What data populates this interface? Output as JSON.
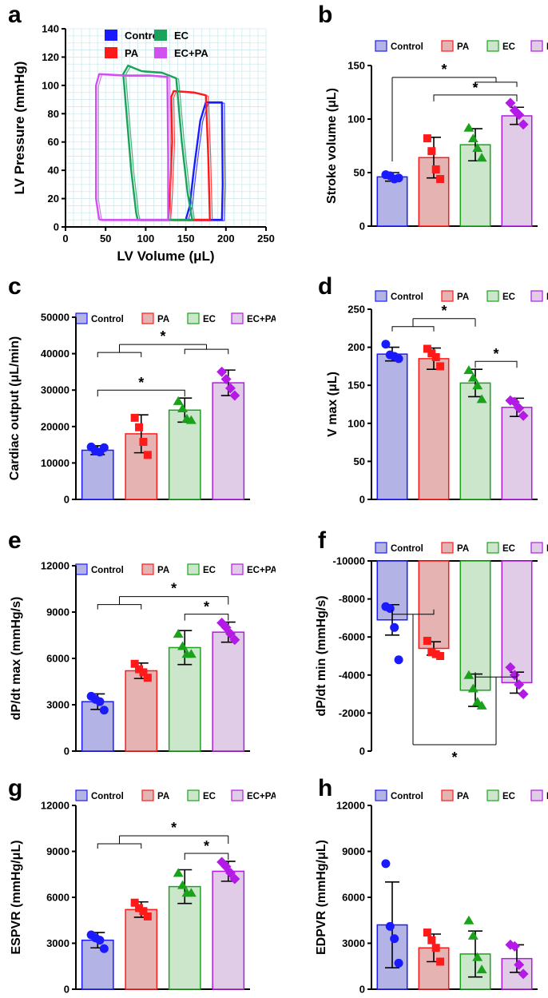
{
  "panel_letters": [
    "a",
    "b",
    "c",
    "d",
    "e",
    "f",
    "g",
    "h"
  ],
  "legend": {
    "entries": [
      {
        "label": "Control",
        "color": "#1a1aff",
        "fill": "#b3b3e6"
      },
      {
        "label": "PA",
        "color": "#ff1a1a",
        "fill": "#e6b3b3"
      },
      {
        "label": "EC",
        "color": "#1aa31a",
        "fill": "#cce6cc"
      },
      {
        "label": "EC+PA",
        "color": "#b31ae6",
        "fill": "#e0cce6"
      }
    ],
    "loop_colors": {
      "Control": "#1a1aff",
      "PA": "#ff1a1a",
      "EC": "#1aa35a",
      "EC+PA": "#d050f0"
    }
  },
  "significance_mark": "*",
  "chart_data": [
    {
      "id": "a",
      "type": "line",
      "title": "",
      "xlabel": "LV Volume (μL)",
      "ylabel": "LV Pressure (mmHg)",
      "xlim": [
        0,
        250
      ],
      "ylim": [
        0,
        140
      ],
      "xticks": [
        0,
        50,
        100,
        150,
        200,
        250
      ],
      "yticks": [
        0,
        20,
        40,
        60,
        80,
        100,
        120,
        140
      ],
      "legend_labels": [
        "Control",
        "EC",
        "PA",
        "EC+PA"
      ],
      "series": [
        {
          "name": "Control",
          "points": [
            [
              150,
              5
            ],
            [
              195,
              5
            ],
            [
              196,
              30
            ],
            [
              195,
              88
            ],
            [
              182,
              88
            ],
            [
              175,
              88
            ],
            [
              168,
              75
            ],
            [
              160,
              40
            ],
            [
              155,
              15
            ],
            [
              150,
              5
            ]
          ]
        },
        {
          "name": "PA",
          "points": [
            [
              128,
              5
            ],
            [
              180,
              5
            ],
            [
              178,
              50
            ],
            [
              175,
              93
            ],
            [
              160,
              95
            ],
            [
              135,
              96
            ],
            [
              132,
              92
            ],
            [
              133,
              60
            ],
            [
              130,
              20
            ],
            [
              128,
              5
            ]
          ]
        },
        {
          "name": "EC",
          "points": [
            [
              90,
              5
            ],
            [
              158,
              5
            ],
            [
              152,
              25
            ],
            [
              145,
              60
            ],
            [
              138,
              105
            ],
            [
              120,
              109
            ],
            [
              95,
              110
            ],
            [
              78,
              114
            ],
            [
              72,
              108
            ],
            [
              82,
              40
            ],
            [
              88,
              10
            ],
            [
              90,
              5
            ]
          ]
        },
        {
          "name": "EC+PA",
          "points": [
            [
              42,
              5
            ],
            [
              128,
              5
            ],
            [
              128,
              50
            ],
            [
              127,
              106
            ],
            [
              105,
              107
            ],
            [
              75,
              107
            ],
            [
              42,
              108
            ],
            [
              38,
              100
            ],
            [
              38,
              20
            ],
            [
              42,
              5
            ]
          ]
        }
      ]
    },
    {
      "id": "b",
      "type": "bar",
      "ylabel": "Stroke volume (μL)",
      "ylim": [
        0,
        150
      ],
      "yticks": [
        0,
        50,
        100,
        150
      ],
      "categories": [
        "Control",
        "PA",
        "EC",
        "EC+PA"
      ],
      "values": [
        46,
        64,
        76,
        103
      ],
      "errors": [
        4,
        19,
        15,
        8
      ],
      "points": [
        [
          48,
          47,
          44,
          45
        ],
        [
          82,
          70,
          53,
          44
        ],
        [
          92,
          82,
          73,
          64
        ],
        [
          115,
          108,
          104,
          95
        ]
      ],
      "significance": [
        {
          "type": "simple",
          "from": 1,
          "to": 3,
          "star": "*"
        },
        {
          "type": "group",
          "left": [
            0
          ],
          "right": [
            2,
            3
          ],
          "star": "*"
        }
      ]
    },
    {
      "id": "c",
      "type": "bar",
      "ylabel": "Cardiac output (μL/min)",
      "ylim": [
        0,
        50000
      ],
      "yticks": [
        0,
        10000,
        20000,
        30000,
        40000,
        50000
      ],
      "categories": [
        "Control",
        "PA",
        "EC",
        "EC+PA"
      ],
      "values": [
        13500,
        18000,
        24500,
        32000
      ],
      "errors": [
        1200,
        5200,
        3300,
        3500
      ],
      "points": [
        [
          14400,
          13300,
          13000,
          14200
        ],
        [
          22400,
          19800,
          15800,
          12200
        ],
        [
          27000,
          25000,
          22200,
          21800
        ],
        [
          35000,
          33000,
          30500,
          28500
        ]
      ],
      "significance": [
        {
          "type": "simple",
          "from": 0,
          "to": 2,
          "star": "*"
        },
        {
          "type": "group",
          "left": [
            0,
            1
          ],
          "right": [
            2,
            3
          ],
          "star": "*"
        }
      ]
    },
    {
      "id": "d",
      "type": "bar",
      "ylabel": "V max (μL)",
      "ylim": [
        0,
        250
      ],
      "yticks": [
        0,
        50,
        100,
        150,
        200,
        250
      ],
      "categories": [
        "Control",
        "PA",
        "EC",
        "EC+PA"
      ],
      "values": [
        191,
        185,
        153,
        121
      ],
      "errors": [
        9,
        14,
        18,
        12
      ],
      "points": [
        [
          204,
          190,
          188,
          185
        ],
        [
          198,
          192,
          187,
          175
        ],
        [
          170,
          160,
          150,
          132
        ],
        [
          130,
          128,
          120,
          110
        ]
      ],
      "significance": [
        {
          "type": "simple",
          "from": 2,
          "to": 3,
          "star": "*"
        },
        {
          "type": "group",
          "left": [
            0,
            1
          ],
          "right": [
            2
          ],
          "star": "*"
        }
      ]
    },
    {
      "id": "e",
      "type": "bar",
      "ylabel": "dP/dt max (mmHg/s)",
      "ylim": [
        0,
        12000
      ],
      "yticks": [
        0,
        3000,
        6000,
        9000,
        12000
      ],
      "categories": [
        "Control",
        "PA",
        "EC",
        "EC+PA"
      ],
      "values": [
        3200,
        5200,
        6700,
        7700
      ],
      "errors": [
        500,
        500,
        1100,
        650
      ],
      "points": [
        [
          3550,
          3350,
          3200,
          2650
        ],
        [
          5650,
          5300,
          5100,
          4750
        ],
        [
          7600,
          6800,
          6300,
          6300
        ],
        [
          8300,
          8000,
          7600,
          7200
        ]
      ],
      "significance": [
        {
          "type": "simple",
          "from": 2,
          "to": 3,
          "star": "*"
        },
        {
          "type": "group",
          "left": [
            0,
            1
          ],
          "right": [
            3
          ],
          "star": "*"
        }
      ]
    },
    {
      "id": "f",
      "type": "bar",
      "ylabel": "dP/dt min (mmHg/s)",
      "ylim": [
        0,
        -10000
      ],
      "yticks": [
        0,
        -2000,
        -4000,
        -6000,
        -8000,
        -10000
      ],
      "inverted_bars": true,
      "categories": [
        "Control",
        "PA",
        "EC",
        "EC+PA"
      ],
      "values": [
        -6900,
        -5400,
        -3200,
        -3600
      ],
      "errors": [
        800,
        350,
        850,
        550
      ],
      "points": [
        [
          -7600,
          -7500,
          -6500,
          -4800
        ],
        [
          -5800,
          -5200,
          -5100,
          -5000
        ],
        [
          -4000,
          -3300,
          -2600,
          -2400
        ],
        [
          -4400,
          -4000,
          -3500,
          -3000
        ]
      ],
      "significance": [
        {
          "type": "simple_below",
          "from": 2,
          "to": 3,
          "star": ""
        },
        {
          "type": "group_below",
          "left": [
            0,
            1
          ],
          "right": [
            2,
            3
          ],
          "star": "*"
        }
      ]
    },
    {
      "id": "g",
      "type": "bar",
      "ylabel": "ESPVR (mmHg/μL)",
      "ylim": [
        0,
        12000
      ],
      "yticks": [
        0,
        3000,
        6000,
        9000,
        12000
      ],
      "categories": [
        "Control",
        "PA",
        "EC",
        "EC+PA"
      ],
      "values": [
        3200,
        5200,
        6700,
        7700
      ],
      "errors": [
        500,
        500,
        1100,
        650
      ],
      "points": [
        [
          3550,
          3350,
          3200,
          2650
        ],
        [
          5650,
          5300,
          5100,
          4750
        ],
        [
          7600,
          6800,
          6300,
          6300
        ],
        [
          8300,
          8000,
          7600,
          7200
        ]
      ],
      "significance": [
        {
          "type": "simple",
          "from": 2,
          "to": 3,
          "star": "*"
        },
        {
          "type": "group",
          "left": [
            0,
            1
          ],
          "right": [
            3
          ],
          "star": "*"
        }
      ]
    },
    {
      "id": "h",
      "type": "bar",
      "ylabel": "EDPVR (mmHg/μL)",
      "ylim": [
        0,
        12000
      ],
      "yticks": [
        0,
        3000,
        6000,
        9000,
        12000
      ],
      "categories": [
        "Control",
        "PA",
        "EC",
        "EC+PA"
      ],
      "values": [
        4200,
        2700,
        2300,
        2000
      ],
      "errors": [
        2800,
        900,
        1500,
        900
      ],
      "points": [
        [
          8200,
          4100,
          3300,
          1700
        ],
        [
          3700,
          3200,
          2700,
          1800
        ],
        [
          4500,
          3500,
          2100,
          1300
        ],
        [
          2900,
          2800,
          1600,
          1000
        ]
      ],
      "significance": []
    }
  ]
}
